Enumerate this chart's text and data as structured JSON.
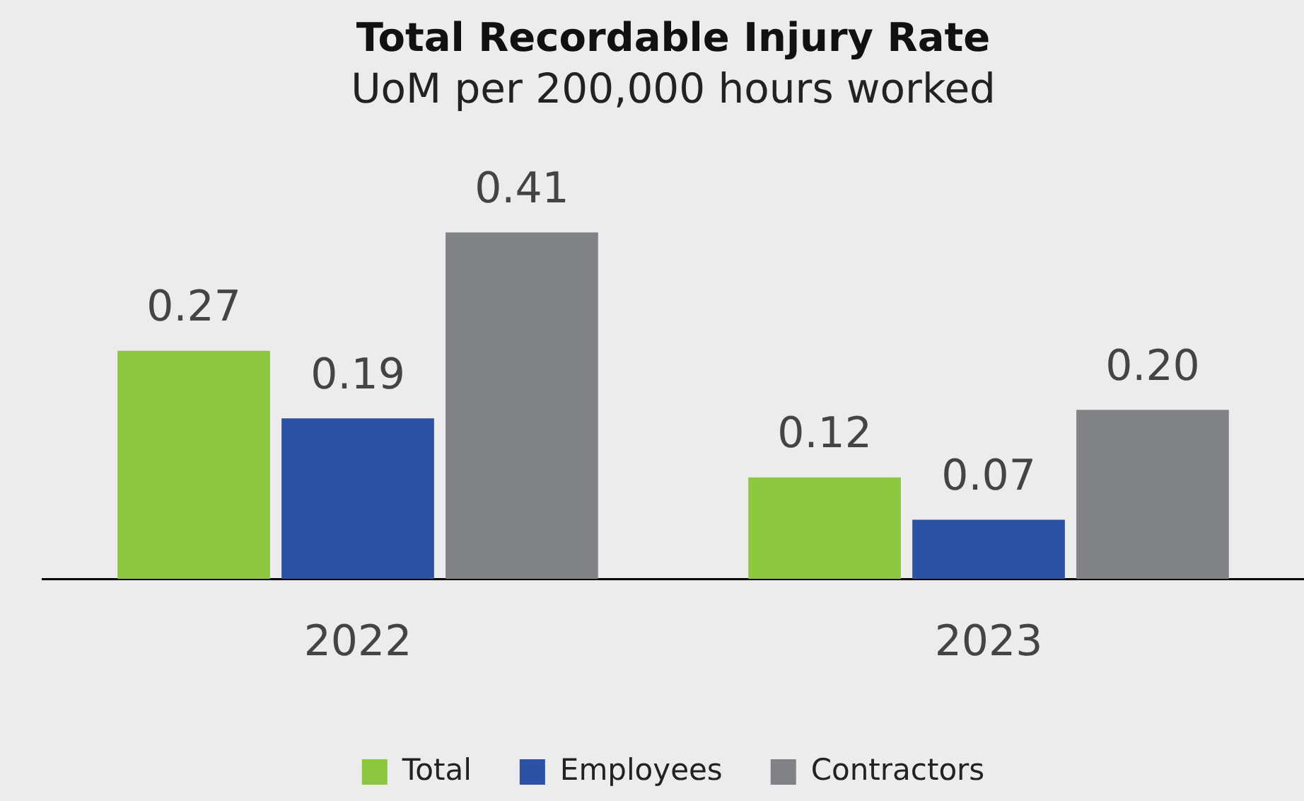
{
  "chart_data": {
    "type": "bar",
    "title": "Total Recordable Injury Rate",
    "subtitle": "UoM per 200,000 hours worked",
    "categories": [
      "2022",
      "2023"
    ],
    "series": [
      {
        "name": "Total",
        "color": "#8dc63f",
        "values": [
          0.27,
          0.12
        ],
        "value_labels": [
          "0.27",
          "0.12"
        ]
      },
      {
        "name": "Employees",
        "color": "#2b52a3",
        "values": [
          0.19,
          0.07
        ],
        "value_labels": [
          "0.19",
          "0.07"
        ]
      },
      {
        "name": "Contractors",
        "color": "#808285",
        "values": [
          0.41,
          0.2
        ],
        "value_labels": [
          "0.41",
          "0.20"
        ]
      }
    ],
    "tick_labels": "x",
    "grid": false,
    "legend": "bottom"
  }
}
